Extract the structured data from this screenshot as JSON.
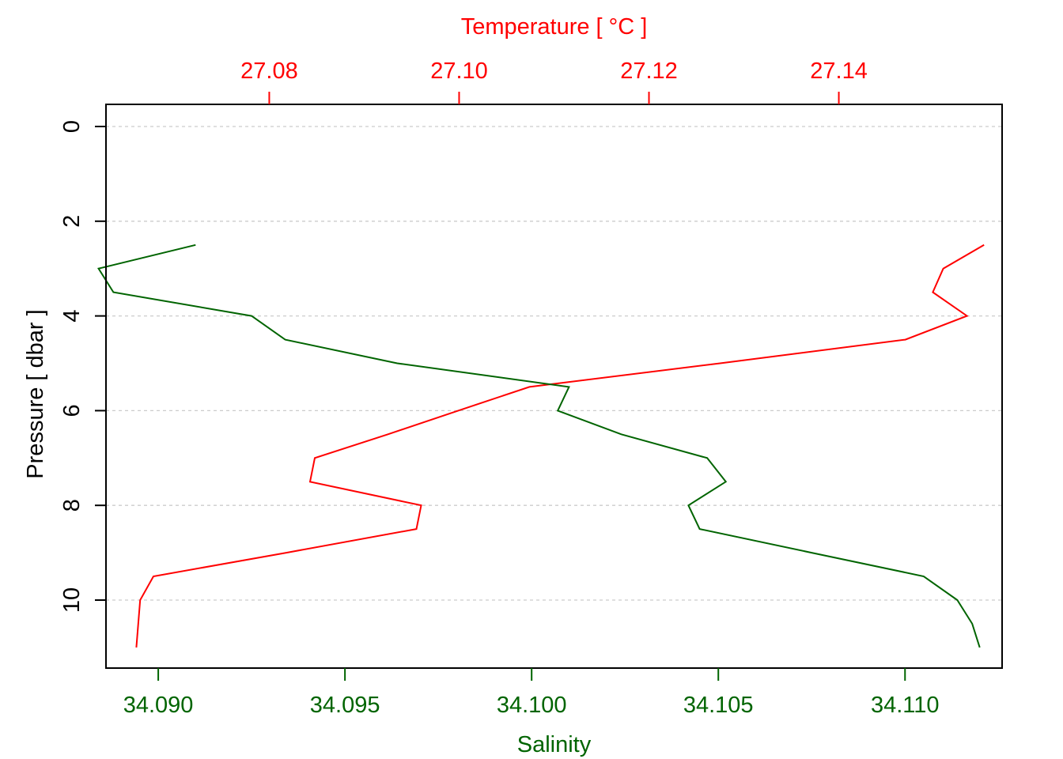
{
  "chart_data": {
    "type": "line",
    "title": "",
    "colors": {
      "temperature": "#ff0000",
      "salinity": "#006400",
      "frame": "#000000",
      "grid": "#cccccc"
    },
    "grid": true,
    "y_axis": {
      "label": "Pressure [ dbar ]",
      "range": [
        0,
        11
      ],
      "reversed": true,
      "ticks": [
        "0",
        "2",
        "4",
        "6",
        "8",
        "10"
      ],
      "tick_values": [
        0,
        2,
        4,
        6,
        8,
        10
      ]
    },
    "top_axis": {
      "label": "Temperature [ °C ]",
      "range": [
        27.0628,
        27.1572
      ],
      "ticks": [
        "27.08",
        "27.10",
        "27.12",
        "27.14"
      ],
      "tick_values": [
        27.08,
        27.1,
        27.12,
        27.14
      ]
    },
    "bottom_axis": {
      "label": "Salinity",
      "range": [
        34.0886,
        34.1126
      ],
      "ticks": [
        "34.090",
        "34.095",
        "34.100",
        "34.105",
        "34.110"
      ],
      "tick_values": [
        34.09,
        34.095,
        34.1,
        34.105,
        34.11
      ]
    },
    "series": [
      {
        "key": "temperature",
        "axis": "top",
        "pressure": [
          2.5,
          3.0,
          3.5,
          4.0,
          4.5,
          5.0,
          5.5,
          6.0,
          6.5,
          7.0,
          7.5,
          8.0,
          8.5,
          9.0,
          9.5,
          10.0,
          10.5,
          11.0
        ],
        "values": [
          27.1553,
          27.151,
          27.1499,
          27.1535,
          27.147,
          27.1275,
          27.1074,
          27.0999,
          27.0925,
          27.0848,
          27.0843,
          27.096,
          27.0955,
          27.0818,
          27.0678,
          27.0664,
          27.0662,
          27.066
        ]
      },
      {
        "key": "salinity",
        "axis": "bottom",
        "pressure": [
          2.5,
          3.0,
          3.5,
          4.0,
          4.5,
          5.0,
          5.5,
          6.0,
          6.5,
          7.0,
          7.5,
          8.0,
          8.5,
          9.0,
          9.5,
          10.0,
          10.5,
          11.0
        ],
        "values": [
          34.091,
          34.0884,
          34.0888,
          34.0925,
          34.0934,
          34.0964,
          34.101,
          34.1007,
          34.1024,
          34.1047,
          34.1052,
          34.1042,
          34.1045,
          34.1075,
          34.1105,
          34.1114,
          34.1118,
          34.112
        ]
      }
    ]
  }
}
